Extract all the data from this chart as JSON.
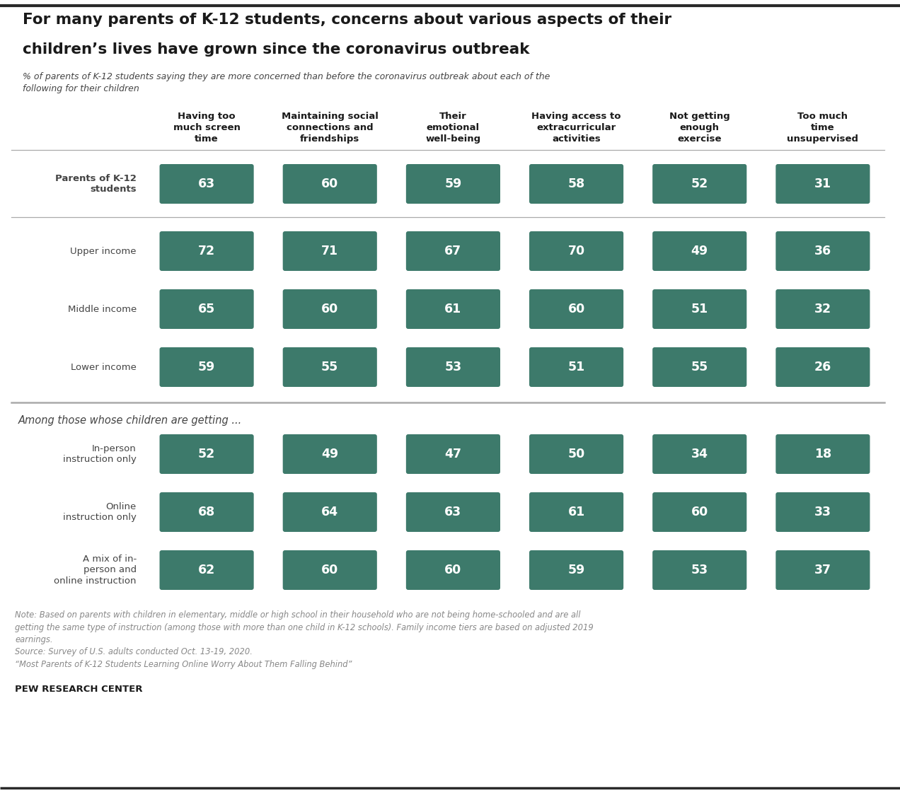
{
  "title_line1": "For many parents of K-12 students, concerns about various aspects of their",
  "title_line2": "children’s lives have grown since the coronavirus outbreak",
  "subtitle": "% of parents of K-12 students saying they are more concerned than before the coronavirus outbreak about each of the\nfollowing for their children",
  "columns": [
    "Having too\nmuch screen\ntime",
    "Maintaining social\nconnections and\nfriendships",
    "Their\nemotional\nwell-being",
    "Having access to\nextracurricular\nactivities",
    "Not getting\nenough\nexercise",
    "Too much\ntime\nunsupervised"
  ],
  "rows": [
    {
      "label": "Parents of K-12\nstudents",
      "values": [
        63,
        60,
        59,
        58,
        52,
        31
      ],
      "bold": true
    },
    {
      "label": "Upper income",
      "values": [
        72,
        71,
        67,
        70,
        49,
        36
      ],
      "bold": false
    },
    {
      "label": "Middle income",
      "values": [
        65,
        60,
        61,
        60,
        51,
        32
      ],
      "bold": false
    },
    {
      "label": "Lower income",
      "values": [
        59,
        55,
        53,
        51,
        55,
        26
      ],
      "bold": false
    },
    {
      "label": "In-person\ninstruction only",
      "values": [
        52,
        49,
        47,
        50,
        34,
        18
      ],
      "bold": false
    },
    {
      "label": "Online\ninstruction only",
      "values": [
        68,
        64,
        63,
        61,
        60,
        33
      ],
      "bold": false
    },
    {
      "label": "A mix of in-\nperson and\nonline instruction",
      "values": [
        62,
        60,
        60,
        59,
        53,
        37
      ],
      "bold": false
    }
  ],
  "section2_label": "Among those whose children are getting ...",
  "box_color": "#3d7a6b",
  "text_color_white": "#ffffff",
  "note_text": "Note: Based on parents with children in elementary, middle or high school in their household who are not being home-schooled and are all\ngetting the same type of instruction (among those with more than one child in K-12 schools). Family income tiers are based on adjusted 2019\nearnings.\nSource: Survey of U.S. adults conducted Oct. 13-19, 2020.\n“Most Parents of K-12 Students Learning Online Worry About Them Falling Behind”",
  "pew_label": "PEW RESEARCH CENTER",
  "bg_color": "#ffffff",
  "header_color": "#1a1a1a",
  "label_color": "#444444",
  "note_color": "#888888",
  "separator_color": "#aaaaaa",
  "top_bar_color": "#2a2a2a"
}
